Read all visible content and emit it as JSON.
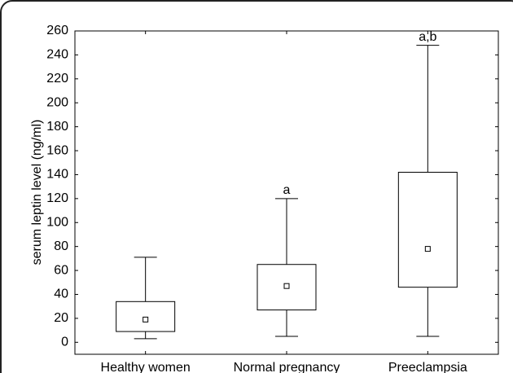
{
  "chart_data": {
    "type": "box",
    "y_label": "serum leptin level (ng/ml)",
    "categories": [
      "Healthy women",
      "Normal pregnancy",
      "Preeclampsia"
    ],
    "min": [
      3,
      5,
      5
    ],
    "q1": [
      9,
      27,
      46
    ],
    "median": [
      19,
      47,
      78
    ],
    "q3": [
      34,
      65,
      142
    ],
    "max": [
      71,
      120,
      248
    ],
    "annotations": [
      {
        "text": "a",
        "category": "Normal pregnancy"
      },
      {
        "text": "a,b",
        "category": "Preeclampsia"
      }
    ],
    "ylim": [
      -10,
      260
    ],
    "yticks": [
      0,
      20,
      40,
      60,
      80,
      100,
      120,
      140,
      160,
      180,
      200,
      220,
      240,
      260
    ],
    "color": "#000000"
  }
}
